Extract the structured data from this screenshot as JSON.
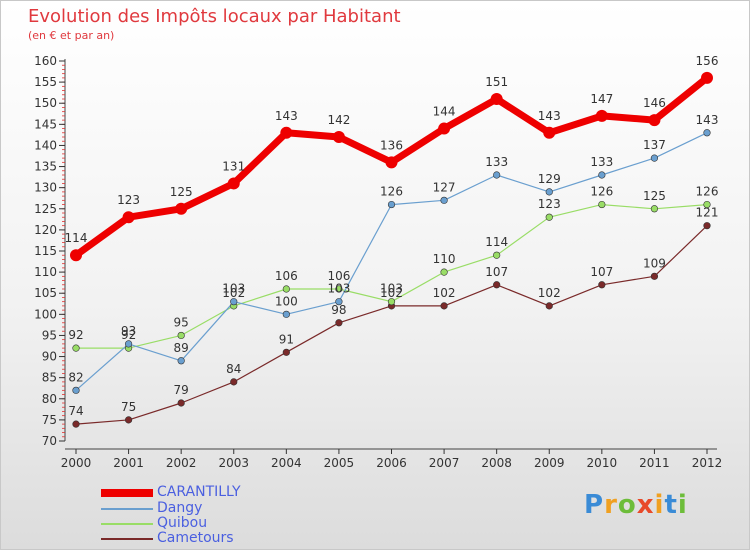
{
  "chart_data": {
    "type": "line",
    "title": "Evolution des Impôts locaux par Habitant",
    "subtitle": "(en € et par an)",
    "xlabel": "",
    "ylabel": "",
    "x": [
      "2000",
      "2001",
      "2002",
      "2003",
      "2004",
      "2005",
      "2006",
      "2007",
      "2008",
      "2009",
      "2010",
      "2011",
      "2012"
    ],
    "ylim": [
      70,
      160
    ],
    "yticks": [
      "70",
      "75",
      "80",
      "85",
      "90",
      "95",
      "100",
      "105",
      "110",
      "115",
      "120",
      "125",
      "130",
      "135",
      "140",
      "145",
      "150",
      "155",
      "160"
    ],
    "grid": false,
    "legend_position": "bottom-left",
    "series": [
      {
        "name": "CARANTILLY",
        "color": "#ee0000",
        "values": [
          114,
          123,
          125,
          131,
          143,
          142,
          136,
          144,
          151,
          143,
          147,
          146,
          156
        ]
      },
      {
        "name": "Dangy",
        "color": "#6a9fcf",
        "values": [
          82,
          93,
          89,
          103,
          100,
          103,
          126,
          127,
          133,
          129,
          133,
          137,
          143
        ]
      },
      {
        "name": "Quibou",
        "color": "#99dd66",
        "values": [
          92,
          92,
          95,
          102,
          106,
          106,
          103,
          110,
          114,
          123,
          126,
          125,
          126
        ]
      },
      {
        "name": "Cametours",
        "color": "#7a2a2a",
        "values": [
          74,
          75,
          79,
          84,
          91,
          98,
          102,
          102,
          107,
          102,
          107,
          109,
          121
        ]
      }
    ]
  },
  "logo": {
    "text": "Proxiti",
    "letters": [
      "P",
      "r",
      "o",
      "x",
      "i",
      "t",
      "i"
    ]
  }
}
